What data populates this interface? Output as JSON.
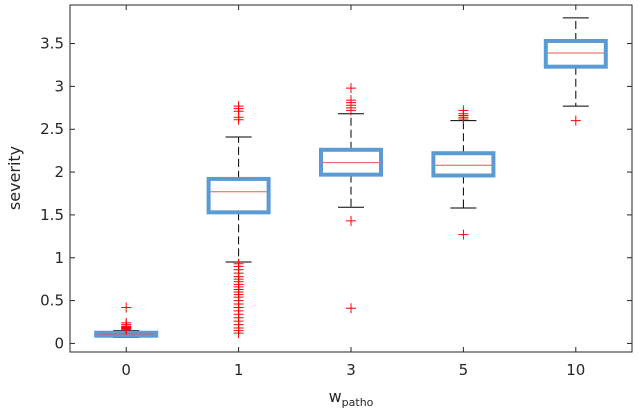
{
  "chart_data": {
    "type": "box",
    "title": "",
    "xlabel": {
      "main": "w",
      "sub": "patho"
    },
    "ylabel": "severity",
    "ylim": [
      -0.1,
      3.95
    ],
    "yticks": [
      0,
      0.5,
      1,
      1.5,
      2,
      2.5,
      3,
      3.5
    ],
    "ytick_labels": [
      "0",
      "0.5",
      "1",
      "1.5",
      "2",
      "2.5",
      "3",
      "3.5"
    ],
    "grid": false,
    "colors": {
      "box": "#5b9bd5",
      "median": "#e8554e",
      "outlier": "#ff0000",
      "whisker": "#000000",
      "axis": "#262626"
    },
    "boxes": [
      {
        "label": "0",
        "q1": 0.09,
        "median": 0.11,
        "q3": 0.125,
        "whisker_low": 0.07,
        "whisker_high": 0.15,
        "outliers": [
          0.42,
          0.24,
          0.22,
          0.2,
          0.19,
          0.18,
          0.17,
          0.16
        ]
      },
      {
        "label": "1",
        "q1": 1.53,
        "median": 1.77,
        "q3": 1.92,
        "whisker_low": 0.95,
        "whisker_high": 2.41,
        "outliers": [
          2.77,
          2.74,
          2.71,
          2.64,
          2.61,
          0.93,
          0.9,
          0.86,
          0.82,
          0.78,
          0.75,
          0.72,
          0.69,
          0.66,
          0.63,
          0.6,
          0.57,
          0.54,
          0.5,
          0.46,
          0.42,
          0.38,
          0.34,
          0.3,
          0.26,
          0.22,
          0.18,
          0.15,
          0.12
        ]
      },
      {
        "label": "3",
        "q1": 1.97,
        "median": 2.11,
        "q3": 2.26,
        "whisker_low": 1.59,
        "whisker_high": 2.68,
        "outliers": [
          2.98,
          2.84,
          2.81,
          2.78,
          2.75,
          2.72,
          1.43,
          0.41
        ]
      },
      {
        "label": "5",
        "q1": 1.96,
        "median": 2.08,
        "q3": 2.22,
        "whisker_low": 1.58,
        "whisker_high": 2.6,
        "outliers": [
          2.72,
          2.68,
          2.66,
          2.64,
          2.62,
          1.27
        ]
      },
      {
        "label": "10",
        "q1": 3.23,
        "median": 3.39,
        "q3": 3.53,
        "whisker_low": 2.77,
        "whisker_high": 3.8,
        "outliers": [
          2.6
        ]
      }
    ]
  }
}
